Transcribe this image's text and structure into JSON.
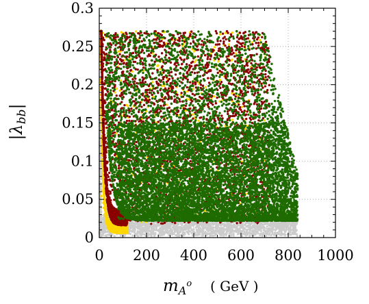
{
  "chart_data": {
    "type": "scatter",
    "title": "",
    "xlabel": "m_{A^o}",
    "xlabel_main": "m",
    "xlabel_sub": "A",
    "xlabel_sup": "o",
    "xlabel_unit": "( GeV )",
    "ylabel": "|λ_bb|",
    "ylabel_main": "|λ",
    "ylabel_sub": "bb",
    "ylabel_end": "|",
    "xlim": [
      0,
      1000
    ],
    "ylim": [
      0,
      0.3
    ],
    "xticks": [
      0,
      200,
      400,
      600,
      800,
      1000
    ],
    "xtick_labels": [
      "0",
      "200",
      "400",
      "600",
      "800",
      "1000"
    ],
    "yticks": [
      0,
      0.05,
      0.1,
      0.15,
      0.2,
      0.25,
      0.3
    ],
    "ytick_labels": [
      "0",
      "0.05",
      "0.1",
      "0.15",
      "0.2",
      "0.25",
      "0.3"
    ],
    "grid": true,
    "legend": "none",
    "series": [
      {
        "color": "#cccccc",
        "region": "x 0–840, |λ| 0.002–0.03 (broad grey floor band under the colored points)",
        "x_range": [
          0,
          840
        ],
        "y_range": [
          0.002,
          0.03
        ]
      },
      {
        "color": "#ffd700",
        "region": "thin band hugging the low-mass edge, x 0–120, |λ| down to ~0.005",
        "x_range": [
          0,
          120
        ],
        "y_range": [
          0.005,
          0.27
        ]
      },
      {
        "color": "#8b0000",
        "region": "x 10–720, |λ| 0.01–0.27; dense curved edge near x 10–100",
        "x_range": [
          10,
          720
        ],
        "y_range": [
          0.01,
          0.27
        ]
      },
      {
        "color": "#1e6b00",
        "region": "x 30–840, |λ| 0.02–0.27; densest for |λ| < 0.15",
        "x_range": [
          30,
          840
        ],
        "y_range": [
          0.02,
          0.27
        ]
      }
    ]
  }
}
